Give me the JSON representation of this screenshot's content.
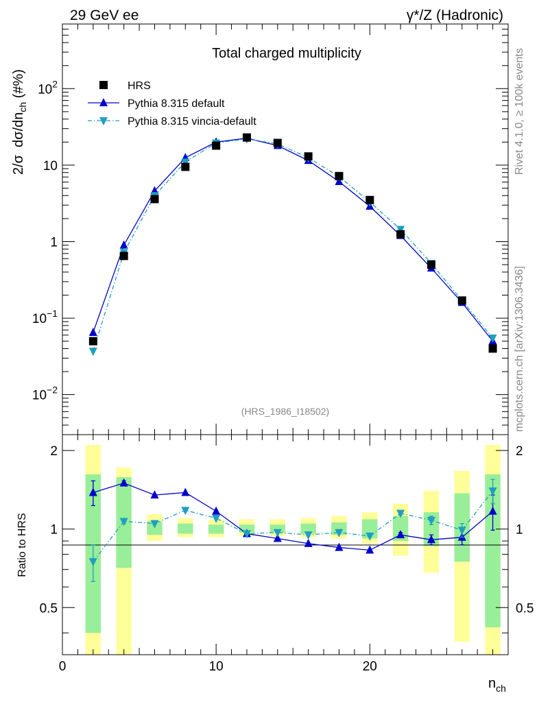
{
  "header": {
    "left": "29 GeV ee",
    "right": "γ*/Z (Hadronic)"
  },
  "side": {
    "rivet": "Rivet 4.1.0, ≥ 100k events",
    "mcplots": "mcplots.cern.ch [arXiv:1306.3436]"
  },
  "chart_data": {
    "type": "scatter",
    "title": "Total charged multiplicity",
    "analysis_label": "(HRS_1986_I18502)",
    "xlabel": "n_ch",
    "ylabel_main": "2/σ  dσ/dn_ch (#%)",
    "ylabel_ratio": "Ratio to HRS",
    "xlim": [
      0,
      29
    ],
    "ylim_main": [
      0.003,
      700
    ],
    "ylim_ratio": [
      0.33,
      2.3
    ],
    "yscale_main": "log",
    "yscale_ratio": "log",
    "x_ticks": [
      0,
      10,
      20
    ],
    "main_y_ticks": [
      {
        "value": 0.01,
        "base": "10",
        "exp": "−2"
      },
      {
        "value": 0.1,
        "base": "10",
        "exp": "−1"
      },
      {
        "value": 1,
        "base": "1",
        "exp": ""
      },
      {
        "value": 10,
        "base": "10",
        "exp": ""
      },
      {
        "value": 100,
        "base": "10",
        "exp": "2"
      }
    ],
    "ratio_y_ticks": [
      0.5,
      1,
      2
    ],
    "x": [
      2,
      4,
      6,
      8,
      10,
      12,
      14,
      16,
      18,
      20,
      22,
      24,
      26,
      28
    ],
    "series": [
      {
        "name": "HRS",
        "style": "data",
        "color": "#000000",
        "marker": "square",
        "values": [
          0.05,
          0.65,
          3.6,
          9.5,
          18,
          23,
          19.5,
          13,
          7.2,
          3.5,
          1.25,
          0.5,
          0.17,
          0.04
        ]
      },
      {
        "name": "Pythia 8.315 default",
        "style": "solid",
        "color": "#0000cc",
        "marker": "triangle-up",
        "values": [
          0.065,
          0.9,
          4.6,
          12.5,
          20,
          22.5,
          18,
          11.5,
          6.1,
          2.9,
          1.2,
          0.45,
          0.16,
          0.05
        ],
        "ratio": [
          1.38,
          1.5,
          1.35,
          1.38,
          1.17,
          0.96,
          0.92,
          0.88,
          0.85,
          0.83,
          0.95,
          0.91,
          0.93,
          1.17
        ],
        "ratio_err": [
          0.15,
          0.03,
          0.01,
          0.01,
          0.01,
          0.01,
          0.01,
          0.01,
          0.01,
          0.01,
          0.02,
          0.04,
          0.06,
          0.18
        ]
      },
      {
        "name": "Pythia 8.315 vincia-default",
        "style": "dashdot",
        "color": "#1e9fbf",
        "marker": "triangle-down",
        "values": [
          0.037,
          0.72,
          4,
          11,
          19.5,
          22,
          19,
          12.5,
          7.1,
          3.3,
          1.45,
          0.52,
          0.17,
          0.055
        ],
        "ratio": [
          0.75,
          1.07,
          1.05,
          1.18,
          1.1,
          0.96,
          0.97,
          0.95,
          0.97,
          0.94,
          1.15,
          1.08,
          0.99,
          1.4
        ],
        "ratio_err": [
          0.12,
          0.02,
          0.01,
          0.01,
          0.01,
          0.01,
          0.01,
          0.01,
          0.01,
          0.01,
          0.02,
          0.04,
          0.06,
          0.15
        ]
      }
    ],
    "uncertainty_bands": {
      "green": [
        [
          0.4,
          1.62
        ],
        [
          0.71,
          1.58
        ],
        [
          0.95,
          1.07
        ],
        [
          0.96,
          1.05
        ],
        [
          0.96,
          1.04
        ],
        [
          0.97,
          1.04
        ],
        [
          0.97,
          1.04
        ],
        [
          0.96,
          1.05
        ],
        [
          0.95,
          1.06
        ],
        [
          0.92,
          1.09
        ],
        [
          0.9,
          1.12
        ],
        [
          0.86,
          1.16
        ],
        [
          0.75,
          1.37
        ],
        [
          0.42,
          1.62
        ]
      ],
      "yellow": [
        [
          0.3,
          2.1
        ],
        [
          0.3,
          1.72
        ],
        [
          0.9,
          1.14
        ],
        [
          0.93,
          1.1
        ],
        [
          0.93,
          1.09
        ],
        [
          0.94,
          1.09
        ],
        [
          0.94,
          1.09
        ],
        [
          0.93,
          1.1
        ],
        [
          0.92,
          1.12
        ],
        [
          0.88,
          1.16
        ],
        [
          0.79,
          1.25
        ],
        [
          0.68,
          1.4
        ],
        [
          0.37,
          1.67
        ],
        [
          0.3,
          2.1
        ]
      ]
    }
  }
}
